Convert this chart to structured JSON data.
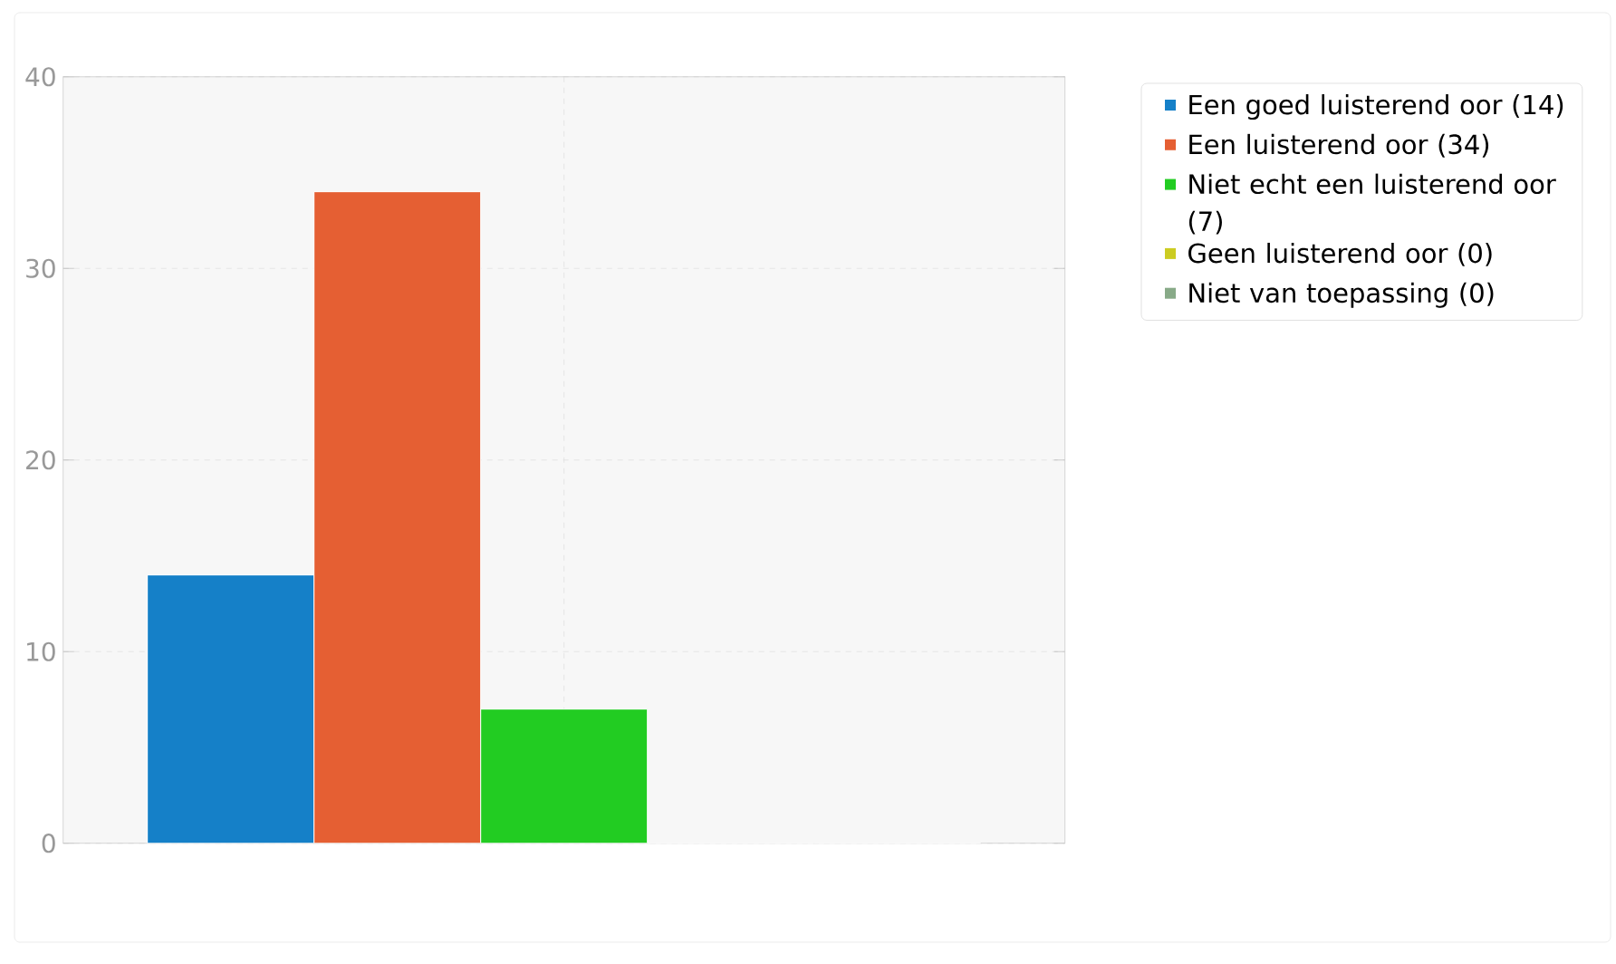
{
  "chart_data": {
    "type": "bar",
    "categories": [
      null
    ],
    "series": [
      {
        "name": "Een goed luisterend oor (14)",
        "color": "#1580c8",
        "values": [
          14
        ]
      },
      {
        "name": "Een luisterend oor (34)",
        "color": "#e55f33",
        "values": [
          34
        ]
      },
      {
        "name": "Niet echt een luisterend oor (7)",
        "color": "#22cc22",
        "values": [
          7
        ]
      },
      {
        "name": "Geen luisterend oor (0)",
        "color": "#cccc22",
        "values": [
          0
        ]
      },
      {
        "name": "Niet van toepassing (0)",
        "color": "#88aa88",
        "values": [
          0
        ]
      }
    ],
    "ylim": [
      0,
      40
    ],
    "yticks": [
      0,
      10,
      20,
      30,
      40
    ],
    "grid": true,
    "legend": "top right",
    "tick_labels": "y"
  }
}
